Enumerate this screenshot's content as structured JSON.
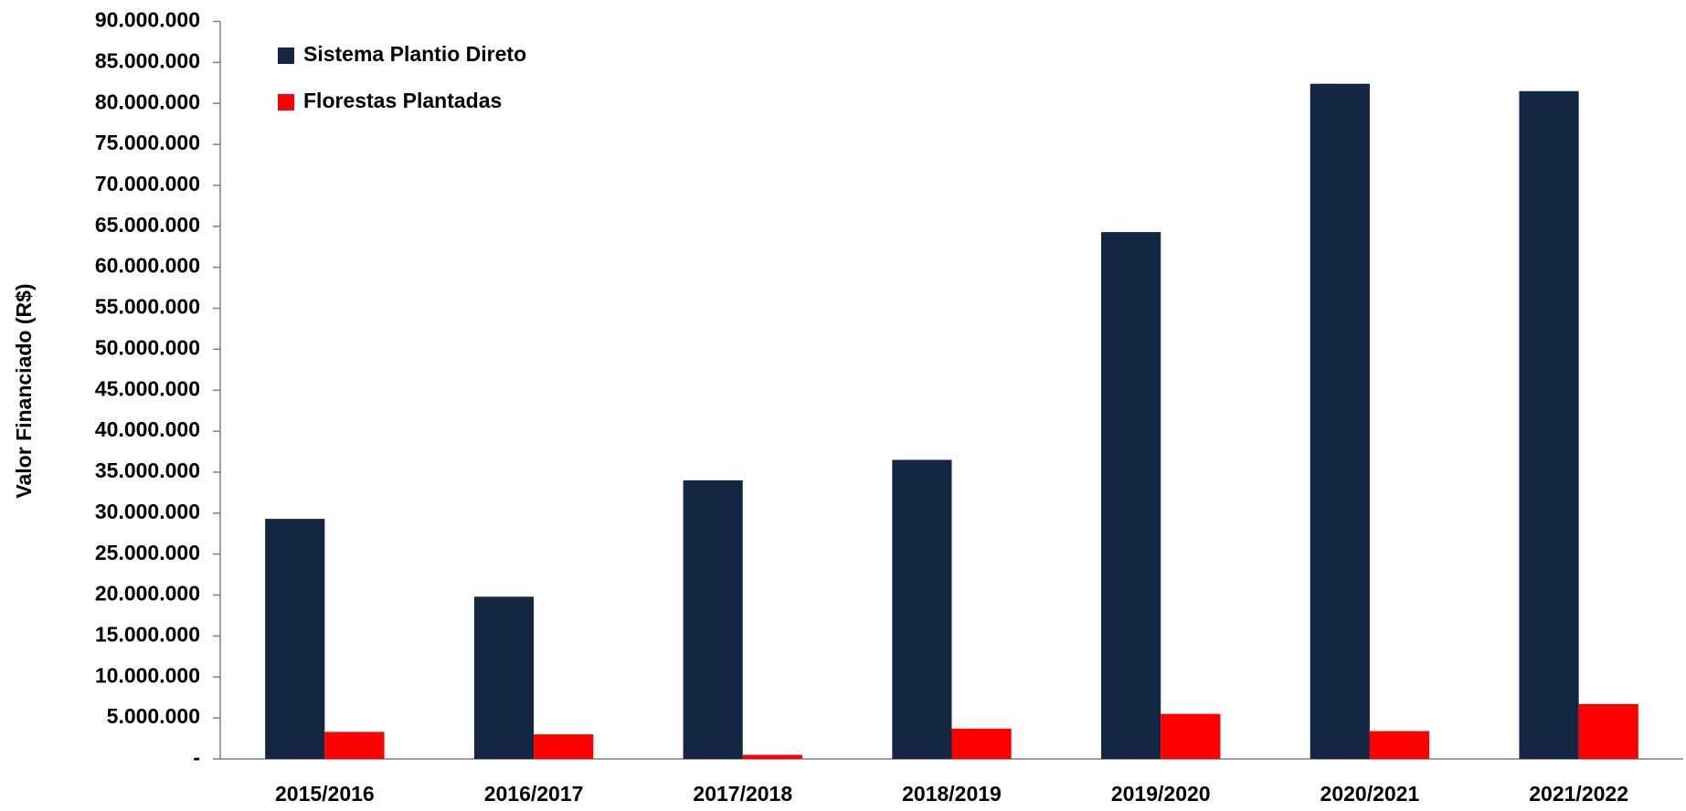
{
  "chart_data": {
    "type": "bar",
    "y_label": "Valor Financiado (R$)",
    "categories": [
      "2015/2016",
      "2016/2017",
      "2017/2018",
      "2018/2019",
      "2019/2020",
      "2020/2021",
      "2021/2022"
    ],
    "series": [
      {
        "name": "Sistema Plantio Direto",
        "color": "#142742",
        "values": [
          29300000,
          19800000,
          34000000,
          36500000,
          64300000,
          82400000,
          81500000
        ]
      },
      {
        "name": "Florestas Plantadas",
        "color": "#ff0000",
        "values": [
          3300000,
          3000000,
          500000,
          3700000,
          5500000,
          3400000,
          6700000
        ]
      }
    ],
    "ylim": [
      0,
      90000000
    ],
    "yticks": [
      {
        "value": 0,
        "label": "-"
      },
      {
        "value": 5000000,
        "label": "5.000.000"
      },
      {
        "value": 10000000,
        "label": "10.000.000"
      },
      {
        "value": 15000000,
        "label": "15.000.000"
      },
      {
        "value": 20000000,
        "label": "20.000.000"
      },
      {
        "value": 25000000,
        "label": "25.000.000"
      },
      {
        "value": 30000000,
        "label": "30.000.000"
      },
      {
        "value": 35000000,
        "label": "35.000.000"
      },
      {
        "value": 40000000,
        "label": "40.000.000"
      },
      {
        "value": 45000000,
        "label": "45.000.000"
      },
      {
        "value": 50000000,
        "label": "50.000.000"
      },
      {
        "value": 55000000,
        "label": "55.000.000"
      },
      {
        "value": 60000000,
        "label": "60.000.000"
      },
      {
        "value": 65000000,
        "label": "65.000.000"
      },
      {
        "value": 70000000,
        "label": "70.000.000"
      },
      {
        "value": 75000000,
        "label": "75.000.000"
      },
      {
        "value": 80000000,
        "label": "80.000.000"
      },
      {
        "value": 85000000,
        "label": "85.000.000"
      },
      {
        "value": 90000000,
        "label": "90.000.000"
      }
    ],
    "legend": "upper left"
  }
}
